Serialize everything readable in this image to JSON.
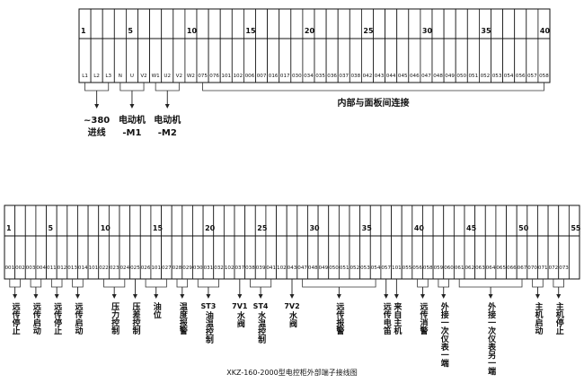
{
  "top_strip": {
    "terminals": [
      "L1",
      "L2",
      "L3",
      "N",
      "U",
      "V2",
      "W1",
      "U2",
      "V2",
      "W2",
      "075",
      "076",
      "101",
      "102",
      "006",
      "007",
      "016",
      "017",
      "030",
      "034",
      "035",
      "036",
      "037",
      "038",
      "042",
      "043",
      "044",
      "045",
      "046",
      "047",
      "048",
      "049",
      "050",
      "051",
      "052",
      "053",
      "054",
      "056",
      "057",
      "058"
    ],
    "numbers": [
      1,
      5,
      10,
      15,
      20,
      25,
      30,
      35,
      40
    ],
    "groups": [
      {
        "from": 1,
        "to": 3,
        "lines": [
          "~380",
          "进线"
        ],
        "arrow": true
      },
      {
        "from": 4,
        "to": 6,
        "lines": [
          "电动机",
          "-M1"
        ],
        "arrow": true
      },
      {
        "from": 7,
        "to": 9,
        "lines": [
          "电动机",
          "-M2"
        ],
        "arrow": true
      },
      {
        "from": 11,
        "to": 40,
        "lines": [
          "内部与面板间连接"
        ],
        "arrow": false
      }
    ]
  },
  "bottom_strip": {
    "terminals": [
      "001",
      "002",
      "003",
      "004",
      "011",
      "012",
      "013",
      "014",
      "101",
      "022",
      "023",
      "024",
      "025",
      "026",
      "101",
      "027",
      "028",
      "029",
      "030",
      "031",
      "032",
      "102",
      "037",
      "038",
      "039",
      "041",
      "102",
      "043",
      "047",
      "048",
      "049",
      "050",
      "051",
      "052",
      "053",
      "054",
      "057",
      "101",
      "055",
      "056",
      "058",
      "059",
      "060",
      "061",
      "062",
      "063",
      "064",
      "065",
      "066",
      "067",
      "070",
      "071",
      "072",
      "073",
      ""
    ],
    "numbers": [
      1,
      5,
      10,
      15,
      20,
      25,
      30,
      35,
      40,
      45,
      50,
      55
    ],
    "groups": [
      {
        "from": 1,
        "to": 2,
        "head": "",
        "text": "远传停止"
      },
      {
        "from": 3,
        "to": 4,
        "head": "",
        "text": "远传启动"
      },
      {
        "from": 5,
        "to": 6,
        "head": "",
        "text": "远传停止"
      },
      {
        "from": 7,
        "to": 8,
        "head": "",
        "text": "远传启动"
      },
      {
        "from": 10,
        "to": 12,
        "head": "",
        "text": "压力控制"
      },
      {
        "from": 13,
        "to": 13,
        "head": "",
        "text": "压差控制"
      },
      {
        "from": 14,
        "to": 16,
        "head": "",
        "text": "油位"
      },
      {
        "from": 17,
        "to": 18,
        "head": "",
        "text": "温度报警"
      },
      {
        "from": 19,
        "to": 21,
        "head": "ST3",
        "text": "油温控制"
      },
      {
        "from": 23,
        "to": 23,
        "head": "7V1",
        "text": "水阀"
      },
      {
        "from": 24,
        "to": 26,
        "head": "ST4",
        "text": "水温控制"
      },
      {
        "from": 28,
        "to": 28,
        "head": "7V2",
        "text": "水阀"
      },
      {
        "from": 29,
        "to": 36,
        "head": "",
        "text": "远传报警"
      },
      {
        "from": 37,
        "to": 37,
        "head": "",
        "text": "远传电笛"
      },
      {
        "from": 38,
        "to": 38,
        "head": "",
        "text": "来自主机"
      },
      {
        "from": 40,
        "to": 41,
        "head": "",
        "text": "远传消警"
      },
      {
        "from": 42,
        "to": 43,
        "head": "",
        "text": "外接一次仪表一端"
      },
      {
        "from": 44,
        "to": 50,
        "head": "",
        "text": "外接一次仪表另一端"
      },
      {
        "from": 51,
        "to": 52,
        "head": "",
        "text": "主机启动"
      },
      {
        "from": 53,
        "to": 54,
        "head": "",
        "text": "主机停止"
      }
    ],
    "caption": "XKZ-160-2000型电控柜外部端子接线图"
  }
}
